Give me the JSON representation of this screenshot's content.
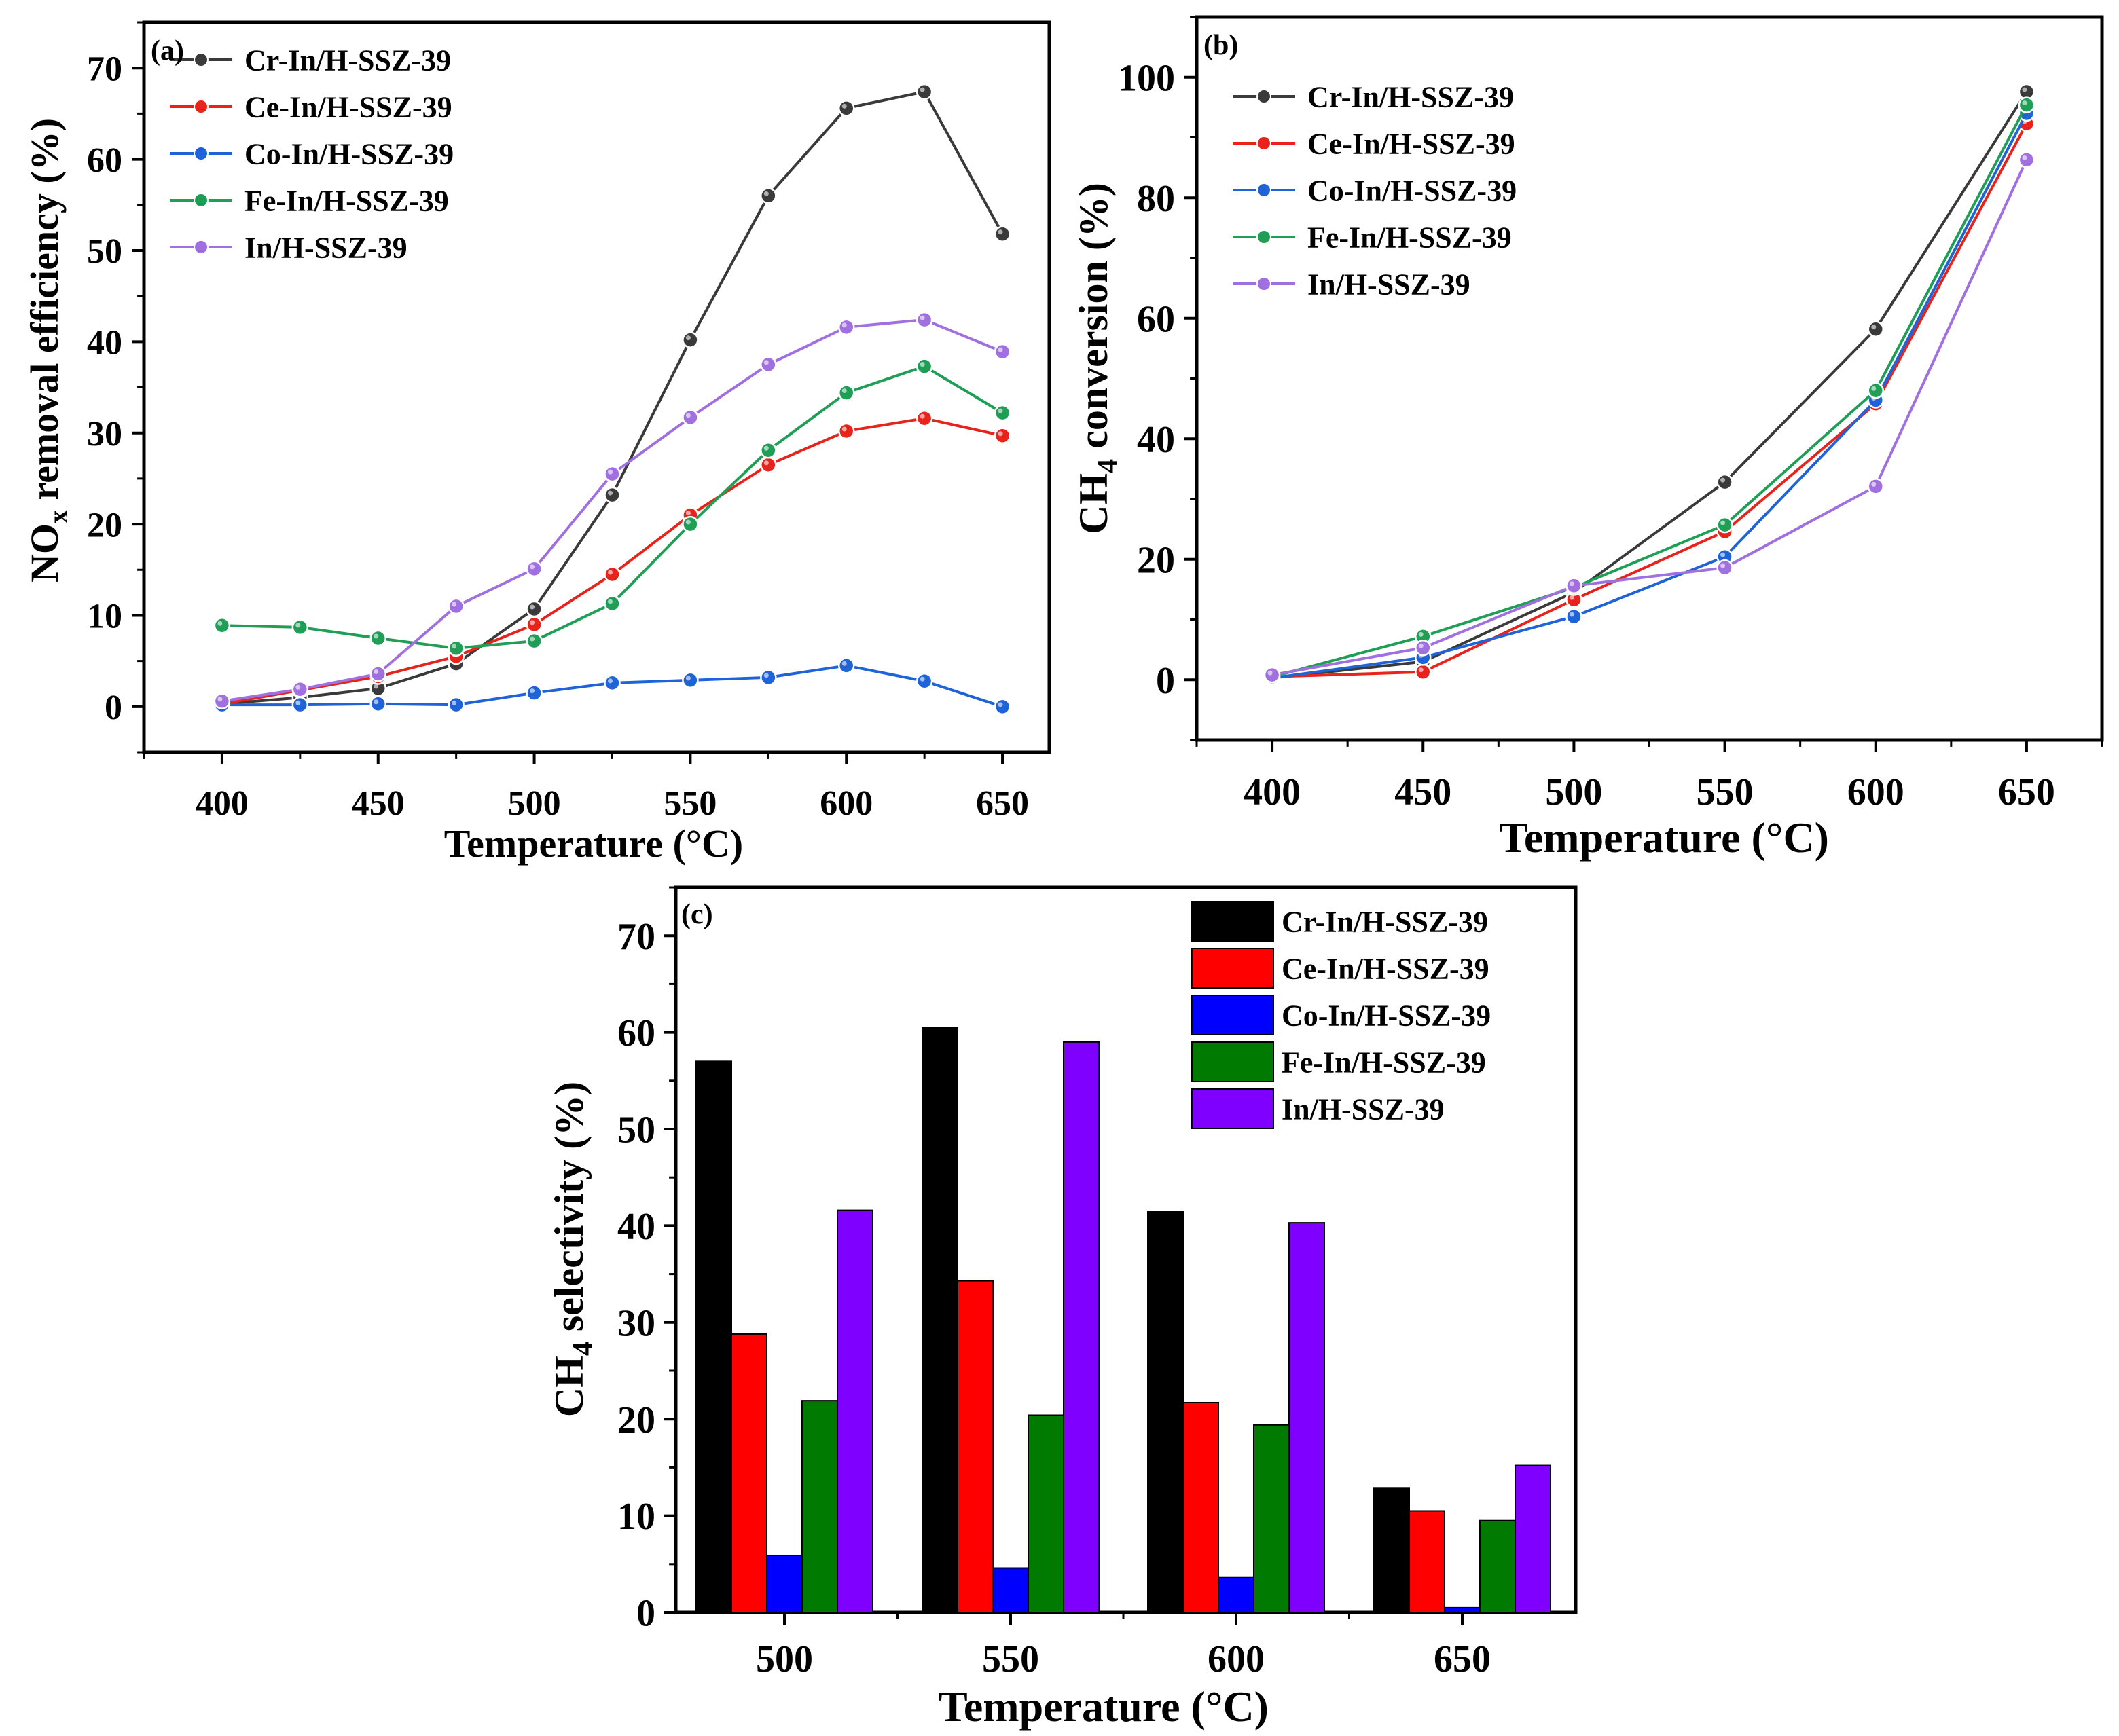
{
  "colors": {
    "Cr-In/H-SSZ-39": "#3a3a3a",
    "Ce-In/H-SSZ-39": "#e8231c",
    "Co-In/H-SSZ-39": "#1f63d9",
    "Fe-In/H-SSZ-39": "#1f9e56",
    "In/H-SSZ-39": "#a070e0"
  },
  "bar_colors": {
    "Cr-In/H-SSZ-39": "#000000",
    "Ce-In/H-SSZ-39": "#ff0000",
    "Co-In/H-SSZ-39": "#0000ff",
    "Fe-In/H-SSZ-39": "#007a00",
    "In/H-SSZ-39": "#8000ff"
  },
  "chart_data": [
    {
      "id": "a",
      "type": "line",
      "panel_label": "(a)",
      "xlabel": "Temperature (°C)",
      "ylabel_main": "NO",
      "ylabel_sub": "x",
      "ylabel_rest": " removal efficiency (%)",
      "xlim": [
        375,
        665
      ],
      "ylim": [
        -5,
        75
      ],
      "xticks": [
        400,
        450,
        500,
        550,
        600,
        650
      ],
      "yticks": [
        0,
        10,
        20,
        30,
        40,
        50,
        60,
        70
      ],
      "legend_position": "top-left",
      "x": [
        400,
        425,
        450,
        475,
        500,
        525,
        550,
        575,
        600,
        625,
        650
      ],
      "series": [
        {
          "name": "Cr-In/H-SSZ-39",
          "values": [
            0.3,
            1.0,
            2.0,
            4.7,
            10.7,
            23.2,
            40.2,
            56.0,
            65.6,
            67.4,
            51.8
          ]
        },
        {
          "name": "Ce-In/H-SSZ-39",
          "values": [
            0.3,
            1.8,
            3.3,
            5.5,
            9.0,
            14.5,
            21.0,
            26.5,
            30.2,
            31.6,
            29.7
          ]
        },
        {
          "name": "Co-In/H-SSZ-39",
          "values": [
            0.2,
            0.2,
            0.3,
            0.2,
            1.5,
            2.6,
            2.9,
            3.2,
            4.5,
            2.8,
            0.0
          ]
        },
        {
          "name": "Fe-In/H-SSZ-39",
          "values": [
            8.9,
            8.7,
            7.5,
            6.4,
            7.2,
            11.3,
            20.0,
            28.1,
            34.4,
            37.3,
            32.2
          ]
        },
        {
          "name": "In/H-SSZ-39",
          "values": [
            0.6,
            1.9,
            3.6,
            11.0,
            15.1,
            25.5,
            31.7,
            37.5,
            41.6,
            42.4,
            38.9
          ]
        }
      ]
    },
    {
      "id": "b",
      "type": "line",
      "panel_label": "(b)",
      "xlabel": "Temperature (°C)",
      "ylabel_main": "CH",
      "ylabel_sub": "4",
      "ylabel_rest": " conversion (%)",
      "xlim": [
        375,
        675
      ],
      "ylim": [
        -10,
        110
      ],
      "xticks": [
        400,
        450,
        500,
        550,
        600,
        650
      ],
      "yticks": [
        0,
        20,
        40,
        60,
        80,
        100
      ],
      "legend_position": "top-left",
      "x": [
        400,
        450,
        500,
        550,
        600,
        650
      ],
      "series": [
        {
          "name": "Cr-In/H-SSZ-39",
          "values": [
            0.3,
            3.0,
            14.5,
            32.8,
            58.2,
            97.6
          ]
        },
        {
          "name": "Ce-In/H-SSZ-39",
          "values": [
            0.5,
            1.3,
            13.3,
            24.6,
            45.8,
            92.3
          ]
        },
        {
          "name": "Co-In/H-SSZ-39",
          "values": [
            0.3,
            3.7,
            10.5,
            20.4,
            46.4,
            94.0
          ]
        },
        {
          "name": "Fe-In/H-SSZ-39",
          "values": [
            0.5,
            7.2,
            15.3,
            25.7,
            48.0,
            95.4
          ]
        },
        {
          "name": "In/H-SSZ-39",
          "values": [
            0.8,
            5.3,
            15.6,
            18.6,
            32.1,
            86.3
          ]
        }
      ]
    },
    {
      "id": "c",
      "type": "bar",
      "panel_label": "(c)",
      "xlabel": "Temperature (°C)",
      "ylabel_main": "CH",
      "ylabel_sub": "4",
      "ylabel_rest": " selectivity (%)",
      "ylim": [
        0,
        75
      ],
      "yticks": [
        0,
        10,
        20,
        30,
        40,
        50,
        60,
        70
      ],
      "legend_position": "top-right",
      "categories": [
        "500",
        "550",
        "600",
        "650"
      ],
      "series": [
        {
          "name": "Cr-In/H-SSZ-39",
          "values": [
            57.0,
            60.5,
            41.5,
            12.9
          ]
        },
        {
          "name": "Ce-In/H-SSZ-39",
          "values": [
            28.8,
            34.3,
            21.7,
            10.5
          ]
        },
        {
          "name": "Co-In/H-SSZ-39",
          "values": [
            5.9,
            4.6,
            3.6,
            0.5
          ]
        },
        {
          "name": "Fe-In/H-SSZ-39",
          "values": [
            21.9,
            20.4,
            19.4,
            9.5
          ]
        },
        {
          "name": "In/H-SSZ-39",
          "values": [
            41.6,
            59.0,
            40.3,
            15.2
          ]
        }
      ]
    }
  ]
}
